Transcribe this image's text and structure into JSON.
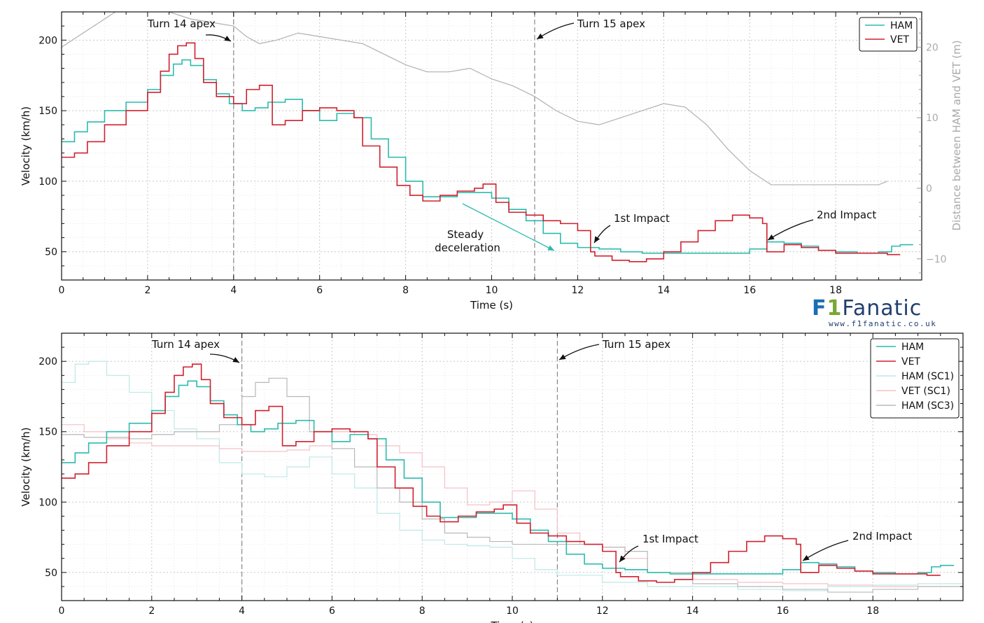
{
  "logo": {
    "prefix": "F",
    "number": "1",
    "name": "Fanatic",
    "url": "www.f1fanatic.co.uk"
  },
  "colors": {
    "ham": "#2bbbad",
    "vet": "#d0202e",
    "ham_sc1": "#bde8e6",
    "vet_sc1": "#f4c0c8",
    "ham_sc3": "#b8b8b8",
    "distance": "#b0b0b0",
    "annotation_arrow": "#2bbbad"
  },
  "chart_data": [
    {
      "type": "line",
      "xlabel": "Time (s)",
      "ylabel": "Velocity (km/h)",
      "y2label": "Distance between HAM and VET (m)",
      "xlim": [
        0,
        20
      ],
      "ylim": [
        30,
        220
      ],
      "y2lim": [
        -13,
        25
      ],
      "xticks": [
        0,
        2,
        4,
        6,
        8,
        10,
        12,
        14,
        16,
        18
      ],
      "yticks": [
        50,
        100,
        150,
        200
      ],
      "y2ticks": [
        -10,
        0,
        10,
        20
      ],
      "y2ticklabels": [
        "−10",
        "0",
        "10",
        "20"
      ],
      "grid": true,
      "legend": "top-right",
      "vlines": [
        4,
        11
      ],
      "annotations": [
        {
          "text": "Turn 14 apex",
          "x": 4,
          "y": 200
        },
        {
          "text": "Turn 15 apex",
          "x": 11,
          "y": 202
        },
        {
          "text": "1st Impact",
          "x": 12.4,
          "y": 56
        },
        {
          "text": "2nd Impact",
          "x": 16.4,
          "y": 58
        },
        {
          "text": "Steady",
          "x": 9.3,
          "y": 85
        },
        {
          "text": "deceleration",
          "x": 11.6,
          "y": 50
        }
      ],
      "series": [
        {
          "name": "HAM",
          "key": "ham",
          "step": true,
          "x": [
            0,
            0.3,
            0.6,
            1,
            1.5,
            2,
            2.3,
            2.6,
            2.8,
            3,
            3.3,
            3.6,
            3.9,
            4.2,
            4.5,
            4.8,
            5.2,
            5.6,
            6,
            6.4,
            6.8,
            7.2,
            7.6,
            8,
            8.4,
            8.8,
            9.2,
            9.6,
            10,
            10.4,
            10.8,
            11.2,
            11.6,
            12,
            12.5,
            13,
            13.5,
            14,
            14.5,
            15,
            15.5,
            16,
            16.4,
            16.8,
            17.2,
            17.6,
            18,
            18.5,
            19,
            19.3,
            19.5
          ],
          "values": [
            128,
            135,
            142,
            150,
            156,
            165,
            175,
            183,
            186,
            182,
            172,
            162,
            155,
            150,
            152,
            156,
            158,
            150,
            143,
            148,
            145,
            130,
            117,
            100,
            89,
            89,
            92,
            92,
            88,
            80,
            72,
            63,
            56,
            53,
            52,
            50,
            49,
            49,
            49,
            49,
            49,
            52,
            57,
            56,
            54,
            51,
            50,
            49,
            50,
            54,
            55
          ]
        },
        {
          "name": "VET",
          "key": "vet",
          "step": true,
          "x": [
            0,
            0.3,
            0.6,
            1,
            1.5,
            2,
            2.3,
            2.5,
            2.7,
            2.9,
            3.1,
            3.3,
            3.6,
            4,
            4.3,
            4.6,
            4.9,
            5.2,
            5.6,
            6,
            6.4,
            6.8,
            7,
            7.4,
            7.8,
            8.1,
            8.4,
            8.8,
            9.2,
            9.6,
            9.8,
            10.1,
            10.4,
            10.8,
            11.2,
            11.6,
            12,
            12.3,
            12.4,
            12.8,
            13.2,
            13.6,
            14,
            14.4,
            14.8,
            15.2,
            15.6,
            16,
            16.3,
            16.4,
            16.8,
            17.2,
            17.6,
            18,
            18.5,
            19.2
          ],
          "values": [
            117,
            120,
            128,
            140,
            150,
            163,
            178,
            190,
            196,
            198,
            187,
            170,
            160,
            155,
            165,
            168,
            140,
            143,
            150,
            152,
            150,
            145,
            125,
            110,
            97,
            90,
            86,
            90,
            93,
            95,
            98,
            85,
            78,
            76,
            72,
            70,
            65,
            50,
            47,
            44,
            43,
            45,
            50,
            57,
            65,
            72,
            76,
            74,
            70,
            50,
            55,
            53,
            51,
            49,
            49,
            48
          ]
        },
        {
          "name": "",
          "key": "distance",
          "axis": "y2",
          "step": false,
          "legend": false,
          "x": [
            0,
            0.5,
            1,
            1.5,
            2,
            2.5,
            3,
            3.5,
            4,
            4.3,
            4.6,
            5,
            5.5,
            6,
            6.5,
            7,
            7.5,
            8,
            8.5,
            9,
            9.5,
            10,
            10.5,
            11,
            11.5,
            12,
            12.5,
            13,
            13.5,
            14,
            14.5,
            15,
            15.5,
            16,
            16.5,
            17,
            17.5,
            18,
            18.5,
            19,
            19.2
          ],
          "values": [
            20,
            22,
            24,
            26,
            26,
            25,
            24,
            23.5,
            23,
            21.5,
            20.5,
            21,
            22,
            21.5,
            21,
            20.5,
            19,
            17.5,
            16.5,
            16.5,
            17,
            15.5,
            14.5,
            13,
            11,
            9.5,
            9,
            10,
            11,
            12,
            11.5,
            9,
            5.5,
            2.5,
            0.5,
            0.5,
            0.5,
            0.5,
            0.5,
            0.5,
            1
          ]
        }
      ]
    },
    {
      "type": "line",
      "xlabel": "Time (s)",
      "ylabel": "Velocity (km/h)",
      "xlim": [
        0,
        20
      ],
      "ylim": [
        30,
        220
      ],
      "xticks": [
        0,
        2,
        4,
        6,
        8,
        10,
        12,
        14,
        16,
        18
      ],
      "yticks": [
        50,
        100,
        150,
        200
      ],
      "grid": true,
      "legend": "top-right",
      "vlines": [
        4,
        11
      ],
      "annotations": [
        {
          "text": "Turn 14 apex",
          "x": 4,
          "y": 200
        },
        {
          "text": "Turn 15 apex",
          "x": 11,
          "y": 202
        },
        {
          "text": "1st Impact",
          "x": 12.4,
          "y": 56
        },
        {
          "text": "2nd Impact",
          "x": 16.4,
          "y": 58
        }
      ],
      "series": [
        {
          "name": "HAM",
          "key": "ham",
          "step": true,
          "x": [
            0,
            0.3,
            0.6,
            1,
            1.5,
            2,
            2.3,
            2.6,
            2.8,
            3,
            3.3,
            3.6,
            3.9,
            4.2,
            4.5,
            4.8,
            5.2,
            5.6,
            6,
            6.4,
            6.8,
            7.2,
            7.6,
            8,
            8.4,
            8.8,
            9.2,
            9.6,
            10,
            10.4,
            10.8,
            11.2,
            11.6,
            12,
            12.5,
            13,
            13.5,
            14,
            14.5,
            15,
            15.5,
            16,
            16.4,
            16.8,
            17.2,
            17.6,
            18,
            18.5,
            19,
            19.3,
            19.5
          ],
          "values": [
            128,
            135,
            142,
            150,
            156,
            165,
            175,
            183,
            186,
            182,
            172,
            162,
            155,
            150,
            152,
            156,
            158,
            150,
            143,
            148,
            145,
            130,
            117,
            100,
            89,
            89,
            92,
            92,
            88,
            80,
            72,
            63,
            56,
            53,
            52,
            50,
            49,
            49,
            49,
            49,
            49,
            52,
            57,
            56,
            54,
            51,
            50,
            49,
            50,
            54,
            55
          ]
        },
        {
          "name": "VET",
          "key": "vet",
          "step": true,
          "x": [
            0,
            0.3,
            0.6,
            1,
            1.5,
            2,
            2.3,
            2.5,
            2.7,
            2.9,
            3.1,
            3.3,
            3.6,
            4,
            4.3,
            4.6,
            4.9,
            5.2,
            5.6,
            6,
            6.4,
            6.8,
            7,
            7.4,
            7.8,
            8.1,
            8.4,
            8.8,
            9.2,
            9.6,
            9.8,
            10.1,
            10.4,
            10.8,
            11.2,
            11.6,
            12,
            12.3,
            12.4,
            12.8,
            13.2,
            13.6,
            14,
            14.4,
            14.8,
            15.2,
            15.6,
            16,
            16.3,
            16.4,
            16.8,
            17.2,
            17.6,
            18,
            18.5,
            19.2
          ],
          "values": [
            117,
            120,
            128,
            140,
            150,
            163,
            178,
            190,
            196,
            198,
            187,
            170,
            160,
            155,
            165,
            168,
            140,
            143,
            150,
            152,
            150,
            145,
            125,
            110,
            97,
            90,
            86,
            90,
            93,
            95,
            98,
            85,
            78,
            76,
            72,
            70,
            65,
            50,
            47,
            44,
            43,
            45,
            50,
            57,
            65,
            72,
            76,
            74,
            70,
            50,
            55,
            53,
            51,
            49,
            49,
            48
          ]
        },
        {
          "name": "HAM (SC1)",
          "key": "ham_sc1",
          "step": true,
          "x": [
            0,
            0.3,
            0.6,
            1,
            1.5,
            2,
            2.5,
            3,
            3.5,
            4,
            4.5,
            5,
            5.5,
            6,
            6.5,
            7,
            7.5,
            8,
            8.5,
            9,
            9.5,
            10,
            10.5,
            11,
            12,
            13,
            14,
            15,
            16,
            17,
            18,
            19,
            20
          ],
          "values": [
            185,
            198,
            200,
            190,
            178,
            165,
            152,
            145,
            128,
            120,
            118,
            125,
            132,
            120,
            110,
            92,
            80,
            73,
            70,
            69,
            68,
            60,
            52,
            48,
            43,
            40,
            40,
            38,
            37,
            40,
            41,
            42,
            44
          ]
        },
        {
          "name": "VET (SC1)",
          "key": "vet_sc1",
          "step": true,
          "x": [
            0,
            0.5,
            1,
            1.5,
            2,
            2.5,
            3,
            3.5,
            4,
            4.5,
            5,
            5.5,
            6,
            6.5,
            7,
            7.5,
            8,
            8.5,
            9,
            9.5,
            10,
            10.5,
            11,
            11.5,
            12,
            12.5,
            13,
            14,
            15,
            16,
            17,
            18,
            19,
            20
          ],
          "values": [
            155,
            150,
            145,
            142,
            140,
            140,
            140,
            138,
            136,
            136,
            137,
            140,
            150,
            148,
            140,
            135,
            125,
            110,
            98,
            100,
            108,
            95,
            78,
            70,
            68,
            60,
            50,
            45,
            43,
            42,
            41,
            40,
            40,
            40
          ]
        },
        {
          "name": "HAM (SC3)",
          "key": "ham_sc3",
          "step": true,
          "x": [
            0,
            0.5,
            1,
            1.5,
            2,
            2.5,
            3,
            3.5,
            4,
            4.3,
            4.6,
            5,
            5.5,
            6,
            6.5,
            7,
            7.5,
            8,
            8.5,
            9,
            9.5,
            10,
            10.5,
            11,
            11.5,
            12,
            12.5,
            13,
            14,
            15,
            16,
            17,
            18,
            19,
            20
          ],
          "values": [
            148,
            146,
            146,
            145,
            148,
            150,
            150,
            155,
            175,
            185,
            188,
            175,
            150,
            138,
            125,
            110,
            100,
            88,
            78,
            75,
            72,
            70,
            70,
            70,
            70,
            68,
            65,
            50,
            42,
            40,
            38,
            36,
            38,
            40,
            42
          ]
        }
      ]
    }
  ]
}
